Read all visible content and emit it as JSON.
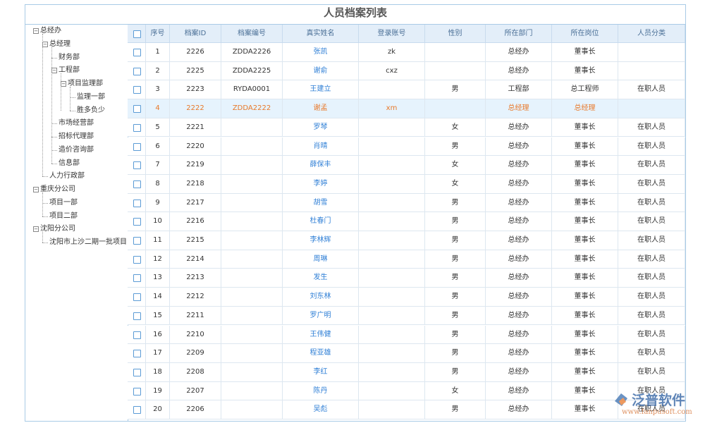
{
  "header": {
    "title": "人员档案列表"
  },
  "tree": [
    {
      "label": "总经办",
      "children": [
        {
          "label": "总经理",
          "children": [
            {
              "label": "财务部"
            },
            {
              "label": "工程部",
              "children": [
                {
                  "label": "项目监理部",
                  "children": [
                    {
                      "label": "监理一部"
                    },
                    {
                      "label": "胜多负少"
                    }
                  ]
                }
              ]
            },
            {
              "label": "市场经营部"
            },
            {
              "label": "招标代理部"
            },
            {
              "label": "造价咨询部"
            },
            {
              "label": "信息部"
            }
          ]
        },
        {
          "label": "人力行政部"
        }
      ]
    },
    {
      "label": "重庆分公司",
      "children": [
        {
          "label": "项目一部"
        },
        {
          "label": "项目二部"
        }
      ]
    },
    {
      "label": "沈阳分公司",
      "children": [
        {
          "label": "沈阳市上沙二期一批项目"
        }
      ]
    }
  ],
  "table": {
    "columns": [
      "序号",
      "档案ID",
      "档案编号",
      "真实姓名",
      "登录账号",
      "性别",
      "所在部门",
      "所在岗位",
      "人员分类"
    ],
    "highlighted_row": 3,
    "rows": [
      [
        "1",
        "2226",
        "ZDDA2226",
        "张凯",
        "zk",
        null,
        "总经办",
        "董事长",
        null
      ],
      [
        "2",
        "2225",
        "ZDDA2225",
        "谢俞",
        "cxz",
        null,
        "总经办",
        "董事长",
        null
      ],
      [
        "3",
        "2223",
        "RYDA0001",
        "王建立",
        null,
        "男",
        "工程部",
        "总工程师",
        "在职人员"
      ],
      [
        "4",
        "2222",
        "ZDDA2222",
        "谢孟",
        "xm",
        null,
        "总经理",
        "总经理",
        null
      ],
      [
        "5",
        "2221",
        null,
        "罗琴",
        null,
        "女",
        "总经办",
        "董事长",
        "在职人员"
      ],
      [
        "6",
        "2220",
        null,
        "肖晴",
        null,
        "男",
        "总经办",
        "董事长",
        "在职人员"
      ],
      [
        "7",
        "2219",
        null,
        "薛保丰",
        null,
        "女",
        "总经办",
        "董事长",
        "在职人员"
      ],
      [
        "8",
        "2218",
        null,
        "李婷",
        null,
        "女",
        "总经办",
        "董事长",
        "在职人员"
      ],
      [
        "9",
        "2217",
        null,
        "胡雪",
        null,
        "男",
        "总经办",
        "董事长",
        "在职人员"
      ],
      [
        "10",
        "2216",
        null,
        "杜春门",
        null,
        "男",
        "总经办",
        "董事长",
        "在职人员"
      ],
      [
        "11",
        "2215",
        null,
        "李林辉",
        null,
        "男",
        "总经办",
        "董事长",
        "在职人员"
      ],
      [
        "12",
        "2214",
        null,
        "周琳",
        null,
        "男",
        "总经办",
        "董事长",
        "在职人员"
      ],
      [
        "13",
        "2213",
        null,
        "发生",
        null,
        "男",
        "总经办",
        "董事长",
        "在职人员"
      ],
      [
        "14",
        "2212",
        null,
        "刘东林",
        null,
        "男",
        "总经办",
        "董事长",
        "在职人员"
      ],
      [
        "15",
        "2211",
        null,
        "罗广明",
        null,
        "男",
        "总经办",
        "董事长",
        "在职人员"
      ],
      [
        "16",
        "2210",
        null,
        "王伟健",
        null,
        "男",
        "总经办",
        "董事长",
        "在职人员"
      ],
      [
        "17",
        "2209",
        null,
        "程亚雄",
        null,
        "男",
        "总经办",
        "董事长",
        "在职人员"
      ],
      [
        "18",
        "2208",
        null,
        "李红",
        null,
        "男",
        "总经办",
        "董事长",
        "在职人员"
      ],
      [
        "19",
        "2207",
        null,
        "陈丹",
        null,
        "女",
        "总经办",
        "董事长",
        "在职人员"
      ],
      [
        "20",
        "2206",
        null,
        "吴彪",
        null,
        "男",
        "总经办",
        "董事长",
        "在职人员"
      ]
    ]
  },
  "watermark": {
    "brand": "泛普软件",
    "url": "www.fanpusoft.com"
  }
}
